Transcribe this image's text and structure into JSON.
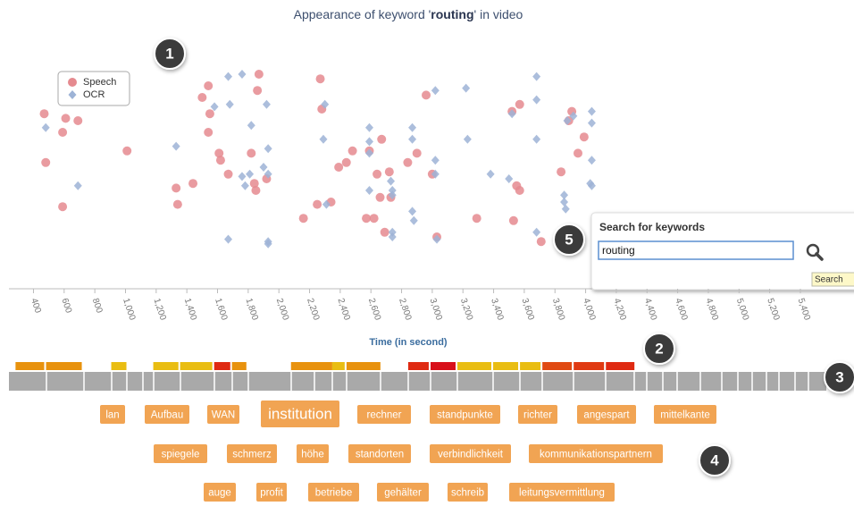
{
  "chart_data": {
    "type": "scatter",
    "title_parts": [
      "Appearance of keyword '",
      "routing",
      "' in video"
    ],
    "x_label": "Time (in second)",
    "xlim": [
      240,
      5540
    ],
    "xticks": [
      400,
      600,
      800,
      {
        "value": 1000,
        "label": "1,000"
      },
      {
        "value": 1200,
        "label": "1,200"
      },
      {
        "value": 1400,
        "label": "1,400"
      },
      {
        "value": 1600,
        "label": "1,600"
      },
      {
        "value": 1800,
        "label": "1,800"
      },
      {
        "value": 2000,
        "label": "2,000"
      },
      {
        "value": 2200,
        "label": "2,200"
      },
      {
        "value": 2400,
        "label": "2,400"
      },
      {
        "value": 2600,
        "label": "2,600"
      },
      {
        "value": 2800,
        "label": "2,800"
      },
      {
        "value": 3000,
        "label": "3,000"
      },
      {
        "value": 3200,
        "label": "3,200"
      },
      {
        "value": 3400,
        "label": "3,400"
      },
      {
        "value": 3600,
        "label": "3,600"
      },
      {
        "value": 3800,
        "label": "3,800"
      },
      {
        "value": 4000,
        "label": "4,000"
      },
      {
        "value": 4200,
        "label": "4,200"
      },
      {
        "value": 4400,
        "label": "4,400"
      },
      {
        "value": 4600,
        "label": "4,600"
      },
      {
        "value": 4800,
        "label": "4,800"
      },
      {
        "value": 5000,
        "label": "5,000"
      },
      {
        "value": 5200,
        "label": "5,200"
      },
      {
        "value": 5400,
        "label": "5,400"
      }
    ],
    "ylim": [
      0,
      100
    ],
    "legend": "top-left",
    "series": [
      {
        "name": "Speech",
        "color": "#e58a8f",
        "marker": "circle",
        "x": [
          470,
          480,
          610,
          590,
          690,
          590,
          1010,
          1330,
          1340,
          1440,
          1500,
          1540,
          1540,
          1610,
          1620,
          1670,
          1550,
          1820,
          1840,
          1850,
          1870,
          1860,
          1920,
          2160,
          2250,
          2270,
          2280,
          2340,
          2390,
          2440,
          2480,
          2570,
          2620,
          2640,
          2670,
          2590,
          2660,
          2690,
          2720,
          2730,
          2840,
          2900,
          2960,
          3000,
          3030,
          3290,
          3520,
          3570,
          3550,
          3570,
          3530,
          3710,
          3840,
          3890,
          3910,
          3990,
          3950
        ],
        "values": [
          78,
          57,
          76,
          70,
          75,
          38,
          62,
          46,
          39,
          48,
          85,
          90,
          70,
          61,
          58,
          52,
          78,
          61,
          48,
          45,
          95,
          88,
          50,
          33,
          39,
          93,
          80,
          40,
          55,
          57,
          62,
          33,
          33,
          52,
          67,
          62,
          42,
          27,
          53,
          42,
          57,
          61,
          86,
          52,
          25,
          33,
          79,
          82,
          47,
          45,
          32,
          23,
          53,
          75,
          79,
          68,
          61
        ]
      },
      {
        "name": "OCR",
        "color": "#9db3d6",
        "marker": "diamond",
        "x": [
          480,
          690,
          1330,
          1580,
          1670,
          1680,
          1670,
          1760,
          1760,
          1780,
          1810,
          1820,
          1900,
          1920,
          1930,
          1930,
          1930,
          1930,
          2300,
          2290,
          2310,
          2590,
          2590,
          2590,
          2590,
          2730,
          2740,
          2740,
          2740,
          2740,
          2870,
          2870,
          2870,
          2880,
          3020,
          3020,
          3020,
          3030,
          3220,
          3230,
          3380,
          3500,
          3520,
          3680,
          3680,
          3680,
          3680,
          3860,
          3860,
          3870,
          3880,
          3920,
          4040,
          4040,
          4040,
          4030,
          4040
        ],
        "values": [
          72,
          47,
          64,
          81,
          94,
          82,
          24,
          95,
          51,
          47,
          52,
          73,
          55,
          82,
          63,
          23,
          22,
          52,
          82,
          67,
          39,
          72,
          66,
          45,
          61,
          49,
          45,
          43,
          27,
          25,
          72,
          67,
          36,
          32,
          58,
          88,
          52,
          24,
          89,
          67,
          52,
          50,
          78,
          94,
          84,
          67,
          27,
          43,
          40,
          37,
          75,
          77,
          79,
          74,
          58,
          48,
          47
        ]
      }
    ]
  },
  "timeline": {
    "segments": [
      {
        "start": 283,
        "end": 470,
        "color": "#e8920e"
      },
      {
        "start": 482,
        "end": 715,
        "color": "#e8920e"
      },
      {
        "start": 907,
        "end": 1006,
        "color": "#e9bd12"
      },
      {
        "start": 1181,
        "end": 1345,
        "color": "#e9bd12"
      },
      {
        "start": 1356,
        "end": 1566,
        "color": "#e9bd12"
      },
      {
        "start": 1578,
        "end": 1683,
        "color": "#df2a12"
      },
      {
        "start": 1694,
        "end": 1788,
        "color": "#e8920e"
      },
      {
        "start": 2079,
        "end": 2348,
        "color": "#e8920e"
      },
      {
        "start": 2348,
        "end": 2429,
        "color": "#e9bd12"
      },
      {
        "start": 2441,
        "end": 2662,
        "color": "#e8920e"
      },
      {
        "start": 2843,
        "end": 2977,
        "color": "#df2a12"
      },
      {
        "start": 2989,
        "end": 3152,
        "color": "#d8101a"
      },
      {
        "start": 3164,
        "end": 3385,
        "color": "#e9bd12"
      },
      {
        "start": 3397,
        "end": 3560,
        "color": "#e9bd12"
      },
      {
        "start": 3572,
        "end": 3706,
        "color": "#e9bd12"
      },
      {
        "start": 3718,
        "end": 3910,
        "color": "#e04a12"
      },
      {
        "start": 3922,
        "end": 4120,
        "color": "#e03a12"
      },
      {
        "start": 4132,
        "end": 4318,
        "color": "#df2a12"
      }
    ]
  },
  "keywords": [
    [
      "lan",
      "Aufbau",
      "WAN",
      "institution",
      "rechner",
      "standpunkte",
      "richter",
      "angespart",
      "mittelkante"
    ],
    [
      "spiegele",
      "schmerz",
      "höhe",
      "standorten",
      "verbindlichkeit",
      "kommunikationspartnern"
    ],
    [
      "auge",
      "profit",
      "betriebe",
      "gehälter",
      "schreib",
      "leitungsvermittlung"
    ]
  ],
  "search": {
    "title": "Search for keywords",
    "query": "routing",
    "tooltip": "Search"
  },
  "callouts": [
    "1",
    "2",
    "3",
    "4",
    "5"
  ]
}
